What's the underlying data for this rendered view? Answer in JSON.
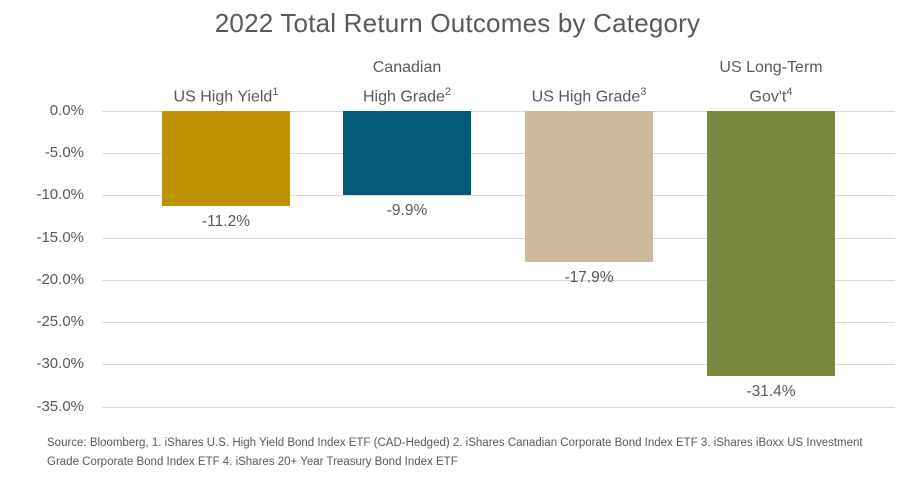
{
  "chart_data": {
    "type": "bar",
    "title": "2022 Total Return Outcomes by Category",
    "categories": [
      "US High Yield¹",
      "Canadian High Grade²",
      "US High Grade³",
      "US Long-Term Gov't⁴"
    ],
    "category_lines": [
      [
        "US High Yield¹"
      ],
      [
        "Canadian",
        "High Grade²"
      ],
      [
        "US High Grade³"
      ],
      [
        "US Long-Term",
        "Gov't⁴"
      ]
    ],
    "values": [
      -11.2,
      -9.9,
      -17.9,
      -31.4
    ],
    "value_labels": [
      "-11.2%",
      "-9.9%",
      "-17.9%",
      "-31.4%"
    ],
    "bar_colors": [
      "#BF9202",
      "#045A7A",
      "#CDB99B",
      "#78883C"
    ],
    "xlabel": "",
    "ylabel": "",
    "ylim": [
      -35,
      0
    ],
    "ytick_step": 5,
    "ytick_labels": [
      "0.0%",
      "-5.0%",
      "-10.0%",
      "-15.0%",
      "-20.0%",
      "-25.0%",
      "-30.0%",
      "-35.0%"
    ],
    "grid": true,
    "legend": false,
    "gridline_color": "#D9D9D9",
    "text_color": "#595959",
    "title_color": "#595959"
  },
  "source": {
    "line1": "Source: Bloomberg, 1. iShares U.S. High Yield Bond Index ETF (CAD-Hedged) 2. iShares Canadian Corporate Bond Index ETF 3. iShares iBoxx US Investment",
    "line2": "Grade Corporate Bond Index ETF 4. iShares 20+ Year Treasury Bond Index ETF"
  }
}
